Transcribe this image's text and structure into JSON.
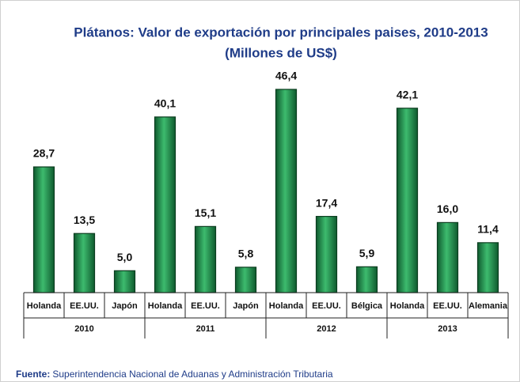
{
  "chart_data": {
    "type": "bar",
    "title": "Plátanos: Valor  de exportación por principales paises, 2010-2013",
    "subtitle": "(Millones de US$)",
    "categories": [
      "Holanda",
      "EE.UU.",
      "Japón",
      "Holanda",
      "EE.UU.",
      "Japón",
      "Holanda",
      "EE.UU.",
      "Bélgica",
      "Holanda",
      "EE.UU.",
      "Alemania"
    ],
    "groups": [
      "2010",
      "2011",
      "2012",
      "2013"
    ],
    "values": [
      28.7,
      13.5,
      5.0,
      40.1,
      15.1,
      5.8,
      46.4,
      17.4,
      5.9,
      42.1,
      16.0,
      11.4
    ],
    "value_labels": [
      "28,7",
      "13,5",
      "5,0",
      "40,1",
      "15,1",
      "5,8",
      "46,4",
      "17,4",
      "5,9",
      "42,1",
      "16,0",
      "11,4"
    ],
    "color": "#1e8a4c",
    "source_label": "Fuente:",
    "source": "Superintendencia Nacional de Aduanas y Administración Tributaria"
  }
}
